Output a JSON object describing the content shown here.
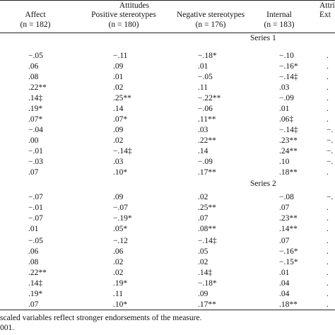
{
  "header": {
    "attitudes_label": "Attitudes",
    "attributions_label": "Attrib",
    "columns": [
      {
        "name": "Affect",
        "n": "(n = 182)"
      },
      {
        "name": "Positive stereotypes",
        "n": "(n = 180)"
      },
      {
        "name": "Negative stereotypes",
        "n": "(n = 176)"
      },
      {
        "name": "Internal",
        "n": "(n = 183)"
      },
      {
        "name": "Ext",
        "n": ""
      }
    ]
  },
  "series1_label": "Series 1",
  "series2_label": "Series 2",
  "blocks": [
    {
      "rows": [
        [
          "−.05",
          "−.11",
          "−.18*",
          "−.10",
          "."
        ],
        [
          ".06",
          ".09",
          ".01",
          "−.16*",
          "."
        ],
        [
          ".08",
          ".01",
          "−.05",
          "−.14‡",
          "."
        ],
        [
          ".22**",
          ".02",
          ".11",
          ".03",
          "."
        ],
        [
          ".14‡",
          ".25**",
          "−.22**",
          "−.09",
          "."
        ],
        [
          ".19*",
          ".14",
          "−.06",
          ".01",
          "."
        ],
        [
          ".07*",
          ".07*",
          ".11**",
          ".06‡",
          "."
        ]
      ]
    },
    {
      "rows": [
        [
          "−.04",
          ".09",
          ".03",
          "−.14‡",
          "−."
        ],
        [
          ".00",
          ".02",
          ".22**",
          ".23**",
          "−."
        ],
        [
          "−.01",
          "−.14‡",
          ".14",
          ".24**",
          "−."
        ],
        [
          "−.03",
          ".03",
          "−.09",
          ".10",
          "−."
        ],
        [
          ".07",
          ".10*",
          ".17**",
          ".18**",
          "."
        ]
      ]
    },
    {
      "rows": [
        [
          "−.07",
          ".09",
          ".02",
          "−.08",
          "−."
        ],
        [
          "−.01",
          "−.07",
          ".25**",
          ".07",
          "."
        ],
        [
          "−.07",
          "−.19*",
          ".07",
          ".23**",
          "."
        ],
        [
          ".01",
          ".05*",
          ".08**",
          ".14**",
          "."
        ]
      ]
    },
    {
      "rows": [
        [
          "−.05",
          "−.12",
          "−.14‡",
          ".07",
          "."
        ],
        [
          ".06",
          ".06",
          ".05",
          "−.16*",
          "."
        ],
        [
          ".08",
          ".02",
          ".02",
          "−.15*",
          "."
        ],
        [
          ".22**",
          ".02",
          ".14‡",
          ".01",
          "."
        ],
        [
          ".14‡",
          ".19*",
          "−.18*",
          ".04",
          "."
        ],
        [
          ".19*",
          ".11",
          ".09",
          ".04",
          "."
        ],
        [
          ".07",
          ".10*",
          ".17**",
          ".18**",
          "."
        ]
      ]
    }
  ],
  "footnotes": [
    "scaled variables reflect stronger endorsements of the measure.",
    "001."
  ]
}
